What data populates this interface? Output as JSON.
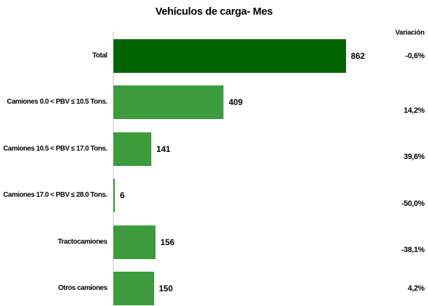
{
  "chart_data": {
    "type": "hbar",
    "title": "Vehículos de carga- Mes",
    "categories": [
      "Total",
      "Camiones 0.0 < PBV ≤ 10.5 Tons.",
      "Camiones 10.5 < PBV ≤ 17.0 Tons.",
      "Camiones 17.0 < PBV ≤ 28.0 Tons.",
      "Tractocamiones",
      "Otros camiones"
    ],
    "values": [
      862,
      409,
      141,
      6,
      156,
      150
    ],
    "colors": [
      "#006400",
      "#3c9b3c",
      "#3c9b3c",
      "#3c9b3c",
      "#3c9b3c",
      "#3c9b3c"
    ],
    "variation": {
      "label": "Variación",
      "values": [
        -0.6,
        14.2,
        39.6,
        -50.0,
        -38.1,
        4.2
      ],
      "value_labels": [
        "-0,6%",
        "14,2%",
        "39,6%",
        "-50,0%",
        "-38,1%",
        "4,2%"
      ]
    }
  }
}
